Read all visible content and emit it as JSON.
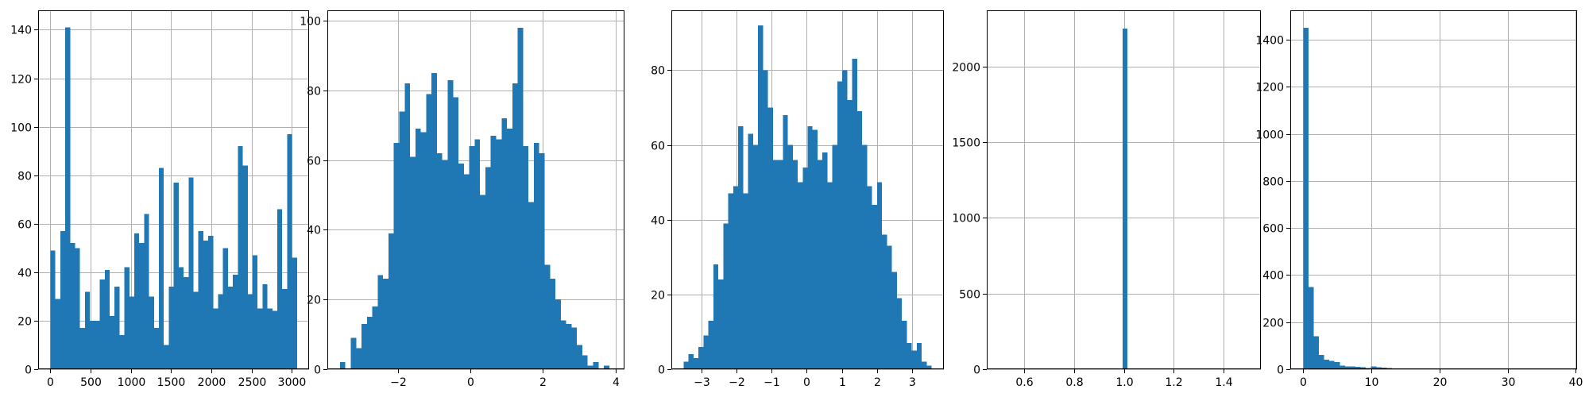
{
  "chart_data": [
    {
      "type": "bar",
      "title": "",
      "xlabel": "",
      "ylabel": "",
      "grid": true,
      "bar_color": "#1f77b4",
      "xlim": [
        -153,
        3215
      ],
      "ylim": [
        0,
        148
      ],
      "xticks": [
        0,
        500,
        1000,
        1500,
        2000,
        2500,
        3000
      ],
      "yticks": [
        0,
        20,
        40,
        60,
        80,
        100,
        120,
        140
      ],
      "bins": {
        "start": 0,
        "width": 61.3,
        "values": [
          49,
          29,
          57,
          141,
          52,
          50,
          17,
          32,
          20,
          20,
          37,
          41,
          22,
          34,
          14,
          42,
          30,
          56,
          52,
          64,
          30,
          17,
          83,
          10,
          34,
          77,
          42,
          38,
          79,
          32,
          57,
          53,
          55,
          25,
          31,
          50,
          34,
          39,
          92,
          84,
          31,
          47,
          25,
          35,
          25,
          24,
          66,
          33,
          97,
          46
        ]
      }
    },
    {
      "type": "bar",
      "title": "",
      "xlabel": "",
      "ylabel": "",
      "grid": true,
      "bar_color": "#1f77b4",
      "xlim": [
        -3.95,
        4.25
      ],
      "ylim": [
        0,
        103
      ],
      "xticks": [
        -2,
        0,
        2,
        4
      ],
      "yticks": [
        0,
        20,
        40,
        60,
        80,
        100
      ],
      "bins": {
        "start": -3.6,
        "width": 0.1486,
        "values": [
          2,
          0,
          9,
          6,
          13,
          15,
          18,
          27,
          26,
          39,
          65,
          74,
          82,
          61,
          69,
          68,
          79,
          85,
          62,
          60,
          83,
          78,
          59,
          56,
          64,
          66,
          50,
          58,
          67,
          66,
          72,
          69,
          82,
          98,
          64,
          48,
          65,
          62,
          30,
          26,
          20,
          14,
          13,
          12,
          7,
          4,
          1,
          2,
          0,
          1
        ]
      }
    },
    {
      "type": "bar",
      "title": "",
      "xlabel": "",
      "ylabel": "",
      "grid": true,
      "bar_color": "#1f77b4",
      "xlim": [
        -3.85,
        3.9
      ],
      "ylim": [
        0,
        96
      ],
      "xticks": [
        -3,
        -2,
        -1,
        0,
        1,
        2,
        3
      ],
      "yticks": [
        0,
        20,
        40,
        60,
        80
      ],
      "bins": {
        "start": -3.5,
        "width": 0.141,
        "values": [
          2,
          4,
          3,
          6,
          9,
          13,
          28,
          24,
          39,
          47,
          49,
          65,
          47,
          63,
          60,
          92,
          80,
          70,
          56,
          56,
          68,
          60,
          56,
          50,
          54,
          65,
          64,
          56,
          58,
          50,
          60,
          77,
          80,
          72,
          83,
          69,
          60,
          49,
          44,
          50,
          36,
          33,
          26,
          19,
          13,
          7,
          5,
          7,
          2,
          1
        ]
      }
    },
    {
      "type": "bar",
      "title": "",
      "xlabel": "",
      "ylabel": "",
      "grid": true,
      "bar_color": "#1f77b4",
      "xlim": [
        0.45,
        1.55
      ],
      "ylim": [
        0,
        2370
      ],
      "xticks": [
        0.6,
        0.8,
        1.0,
        1.2,
        1.4
      ],
      "xtick_labels": [
        "0.6",
        "0.8",
        "1.0",
        "1.2",
        "1.4"
      ],
      "yticks": [
        0,
        500,
        1000,
        1500,
        2000
      ],
      "bins": {
        "start": 0.995,
        "width": 0.02,
        "values": [
          2250
        ]
      }
    },
    {
      "type": "bar",
      "title": "",
      "xlabel": "",
      "ylabel": "",
      "grid": true,
      "bar_color": "#1f77b4",
      "xlim": [
        -1.9,
        40.2
      ],
      "ylim": [
        0,
        1525
      ],
      "xticks": [
        0,
        10,
        20,
        30,
        40
      ],
      "yticks": [
        0,
        200,
        400,
        600,
        800,
        1000,
        1200,
        1400
      ],
      "bins": {
        "start": 0,
        "width": 0.766,
        "values": [
          1450,
          350,
          140,
          60,
          40,
          35,
          30,
          15,
          12,
          12,
          10,
          8,
          5,
          12,
          8,
          6,
          5,
          4,
          4,
          3,
          3,
          2,
          2,
          1,
          1,
          1,
          1,
          1,
          0,
          1,
          0,
          1,
          0,
          0,
          1,
          0,
          0,
          0,
          0,
          0,
          0,
          0,
          0,
          0,
          0,
          0,
          0,
          0,
          0,
          1
        ]
      }
    }
  ]
}
